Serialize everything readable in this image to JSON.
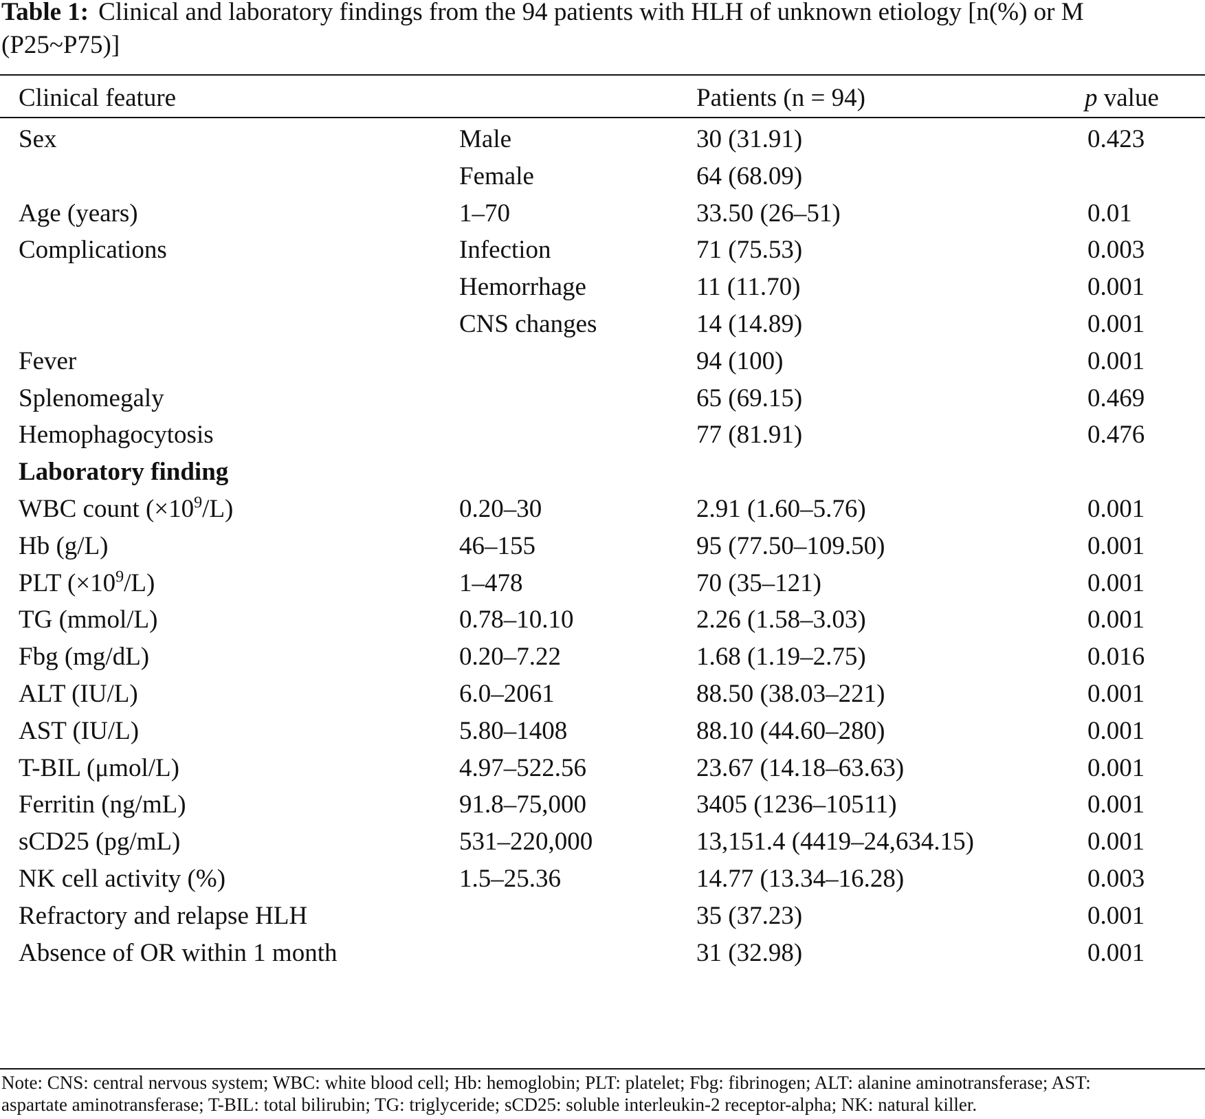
{
  "table": {
    "caption": {
      "label": "Table 1:",
      "text_line1": "Clinical and laboratory findings from the 94 patients with HLH of unknown etiology [n(%) or M",
      "text_line2": "(P25~P75)]"
    },
    "header": {
      "col1": "Clinical feature",
      "col3": "Patients (n = 94)",
      "col4_italic": "p",
      "col4_rest": " value"
    },
    "rows": [
      {
        "c1": "Sex",
        "c2": "Male",
        "c3": "30 (31.91)",
        "c4": "0.423"
      },
      {
        "c1": "",
        "c2": "Female",
        "c3": "64 (68.09)",
        "c4": ""
      },
      {
        "c1": "Age (years)",
        "c2": "1–70",
        "c3": "33.50 (26–51)",
        "c4": "0.01"
      },
      {
        "c1": "Complications",
        "c2": "Infection",
        "c3": "71 (75.53)",
        "c4": "0.003"
      },
      {
        "c1": "",
        "c2": "Hemorrhage",
        "c3": "11 (11.70)",
        "c4": "0.001"
      },
      {
        "c1": "",
        "c2": "CNS changes",
        "c3": "14 (14.89)",
        "c4": "0.001"
      },
      {
        "c1": "Fever",
        "c2": "",
        "c3": "94 (100)",
        "c4": "0.001"
      },
      {
        "c1": "Splenomegaly",
        "c2": "",
        "c3": "65 (69.15)",
        "c4": "0.469"
      },
      {
        "c1": "Hemophagocytosis",
        "c2": "",
        "c3": "77 (81.91)",
        "c4": "0.476"
      }
    ],
    "section_label": "Laboratory finding",
    "lab_rows": [
      {
        "c1a": "WBC count (×10",
        "c1sup": "9",
        "c1b": "/L)",
        "c2": "0.20–30",
        "c3": "2.91 (1.60–5.76)",
        "c4": "0.001"
      },
      {
        "c1a": "Hb (g/L)",
        "c1sup": "",
        "c1b": "",
        "c2": "46–155",
        "c3": "95 (77.50–109.50)",
        "c4": "0.001"
      },
      {
        "c1a": "PLT (×10",
        "c1sup": "9",
        "c1b": "/L)",
        "c2": "1–478",
        "c3": "70 (35–121)",
        "c4": "0.001"
      },
      {
        "c1a": "TG (mmol/L)",
        "c1sup": "",
        "c1b": "",
        "c2": "0.78–10.10",
        "c3": "2.26 (1.58–3.03)",
        "c4": "0.001"
      },
      {
        "c1a": "Fbg (mg/dL)",
        "c1sup": "",
        "c1b": "",
        "c2": "0.20–7.22",
        "c3": "1.68 (1.19–2.75)",
        "c4": "0.016"
      },
      {
        "c1a": "ALT (IU/L)",
        "c1sup": "",
        "c1b": "",
        "c2": "6.0–2061",
        "c3": "88.50 (38.03–221)",
        "c4": "0.001"
      },
      {
        "c1a": "AST (IU/L)",
        "c1sup": "",
        "c1b": "",
        "c2": "5.80–1408",
        "c3": "88.10 (44.60–280)",
        "c4": "0.001"
      },
      {
        "c1a": "T-BIL (μmol/L)",
        "c1sup": "",
        "c1b": "",
        "c2": "4.97–522.56",
        "c3": "23.67 (14.18–63.63)",
        "c4": "0.001"
      },
      {
        "c1a": "Ferritin (ng/mL)",
        "c1sup": "",
        "c1b": "",
        "c2": "91.8–75,000",
        "c3": "3405 (1236–10511)",
        "c4": "0.001"
      },
      {
        "c1a": "sCD25 (pg/mL)",
        "c1sup": "",
        "c1b": "",
        "c2": "531–220,000",
        "c3": "13,151.4 (4419–24,634.15)",
        "c4": "0.001"
      },
      {
        "c1a": "NK cell activity (%)",
        "c1sup": "",
        "c1b": "",
        "c2": "1.5–25.36",
        "c3": "14.77 (13.34–16.28)",
        "c4": "0.003"
      },
      {
        "c1a": "Refractory and relapse HLH",
        "c1sup": "",
        "c1b": "",
        "c2": "",
        "c3": "35 (37.23)",
        "c4": "0.001"
      },
      {
        "c1a": "Absence of OR within 1 month",
        "c1sup": "",
        "c1b": "",
        "c2": "",
        "c3": "31 (32.98)",
        "c4": "0.001"
      }
    ],
    "note_line1": "Note: CNS: central nervous system; WBC: white blood cell; Hb: hemoglobin; PLT: platelet; Fbg: fibrinogen; ALT: alanine aminotransferase; AST:",
    "note_line2": "aspartate aminotransferase; T-BIL: total bilirubin; TG: triglyceride; sCD25: soluble interleukin-2 receptor-alpha; NK: natural killer."
  }
}
